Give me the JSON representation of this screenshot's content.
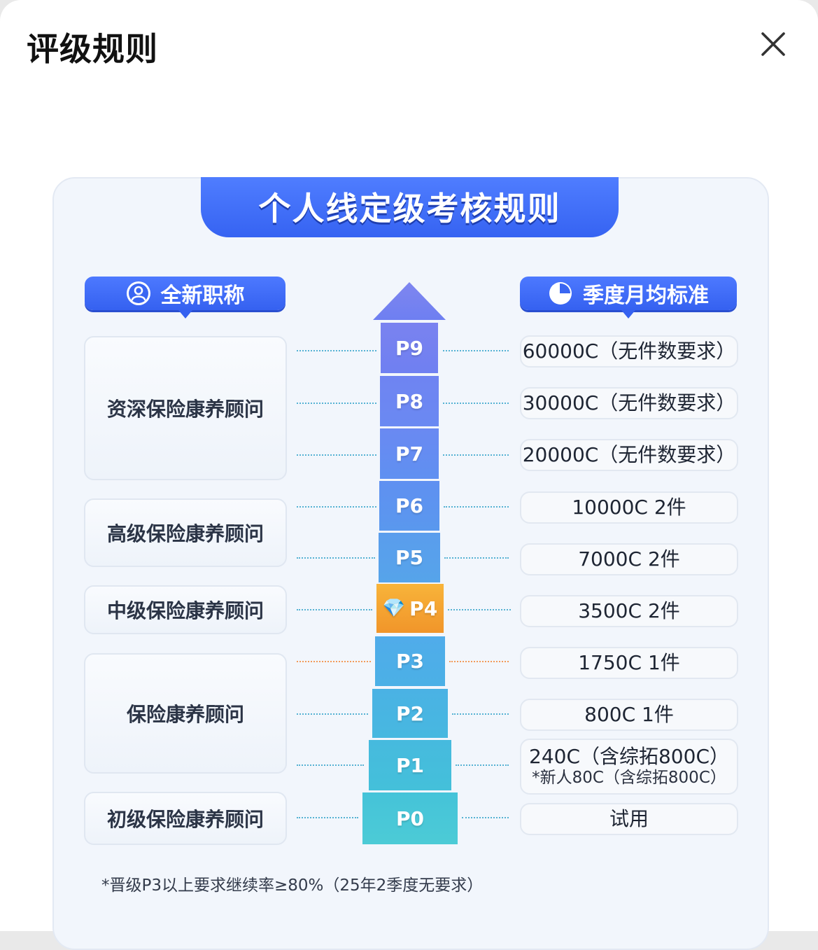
{
  "header": {
    "title": "评级规则",
    "close_icon": "close-icon"
  },
  "card": {
    "banner": "个人线定级考核规则",
    "left_tag": {
      "label": "全新职称",
      "icon": "user-icon"
    },
    "right_tag": {
      "label": "季度月均标准",
      "icon": "pie-chart-icon"
    },
    "titles": [
      "资深保险康养顾问",
      "高级保险康养顾问",
      "中级保险康养顾问",
      "保险康养顾问",
      "初级保险康养顾问"
    ],
    "levels": [
      "P9",
      "P8",
      "P7",
      "P6",
      "P5",
      "P4",
      "P3",
      "P2",
      "P1",
      "P0"
    ],
    "current_level_icon": "diamond-icon",
    "requirements": [
      {
        "main": "60000C（无件数要求）"
      },
      {
        "main": "30000C（无件数要求）"
      },
      {
        "main": "20000C（无件数要求）"
      },
      {
        "main": "10000C 2件"
      },
      {
        "main": "7000C 2件"
      },
      {
        "main": "3500C 2件"
      },
      {
        "main": "1750C 1件"
      },
      {
        "main": "800C 1件"
      },
      {
        "main": "240C（含综拓800C）",
        "sub": "*新人80C（含综拓800C）"
      },
      {
        "main": "试用"
      }
    ],
    "footnote": "*晋级P3以上要求继续率≥80%（25年2季度无要求）",
    "colors": {
      "accent": "#3663f2",
      "highlight": "#f5a623",
      "arrow_top": "#6f7cf0",
      "arrow_bottom": "#4cc0d8"
    }
  }
}
